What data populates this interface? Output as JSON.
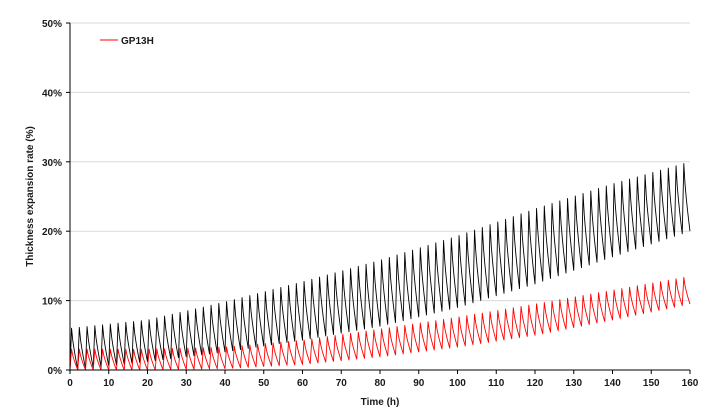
{
  "chart_data": {
    "type": "line",
    "xlabel": "Time (h)",
    "ylabel": "Thickness expansion rate (%)",
    "xlim": [
      0,
      160
    ],
    "ylim": [
      0,
      50
    ],
    "x_ticks": [
      0,
      10,
      20,
      30,
      40,
      50,
      60,
      70,
      80,
      90,
      100,
      110,
      120,
      130,
      140,
      150,
      160
    ],
    "y_ticks": [
      "0%",
      "10%",
      "20%",
      "30%",
      "40%",
      "50%"
    ],
    "y_tick_values": [
      0,
      10,
      20,
      30,
      40,
      50
    ],
    "grid": "horizontal",
    "legend_position": "top-left",
    "cycle_period_h": 2,
    "series": [
      {
        "name": "",
        "color": "#000000",
        "x": [
          0,
          20,
          40,
          60,
          80,
          100,
          120,
          140,
          160
        ],
        "peak": [
          6,
          7.2,
          9.8,
          12.7,
          15.8,
          19.3,
          23.2,
          26.8,
          30
        ],
        "trough": [
          0,
          1.2,
          2.6,
          4.3,
          6.3,
          9,
          12.4,
          16.3,
          20
        ]
      },
      {
        "name": "GP13H",
        "color": "#ff0000",
        "x": [
          0,
          20,
          40,
          60,
          80,
          100,
          120,
          140,
          160
        ],
        "peak": [
          3,
          3,
          3.3,
          4.3,
          5.9,
          7.6,
          9.5,
          11.5,
          13.5
        ],
        "trough": [
          0,
          0,
          0.2,
          0.8,
          1.9,
          3.3,
          5,
          7.2,
          9.5
        ]
      }
    ]
  }
}
